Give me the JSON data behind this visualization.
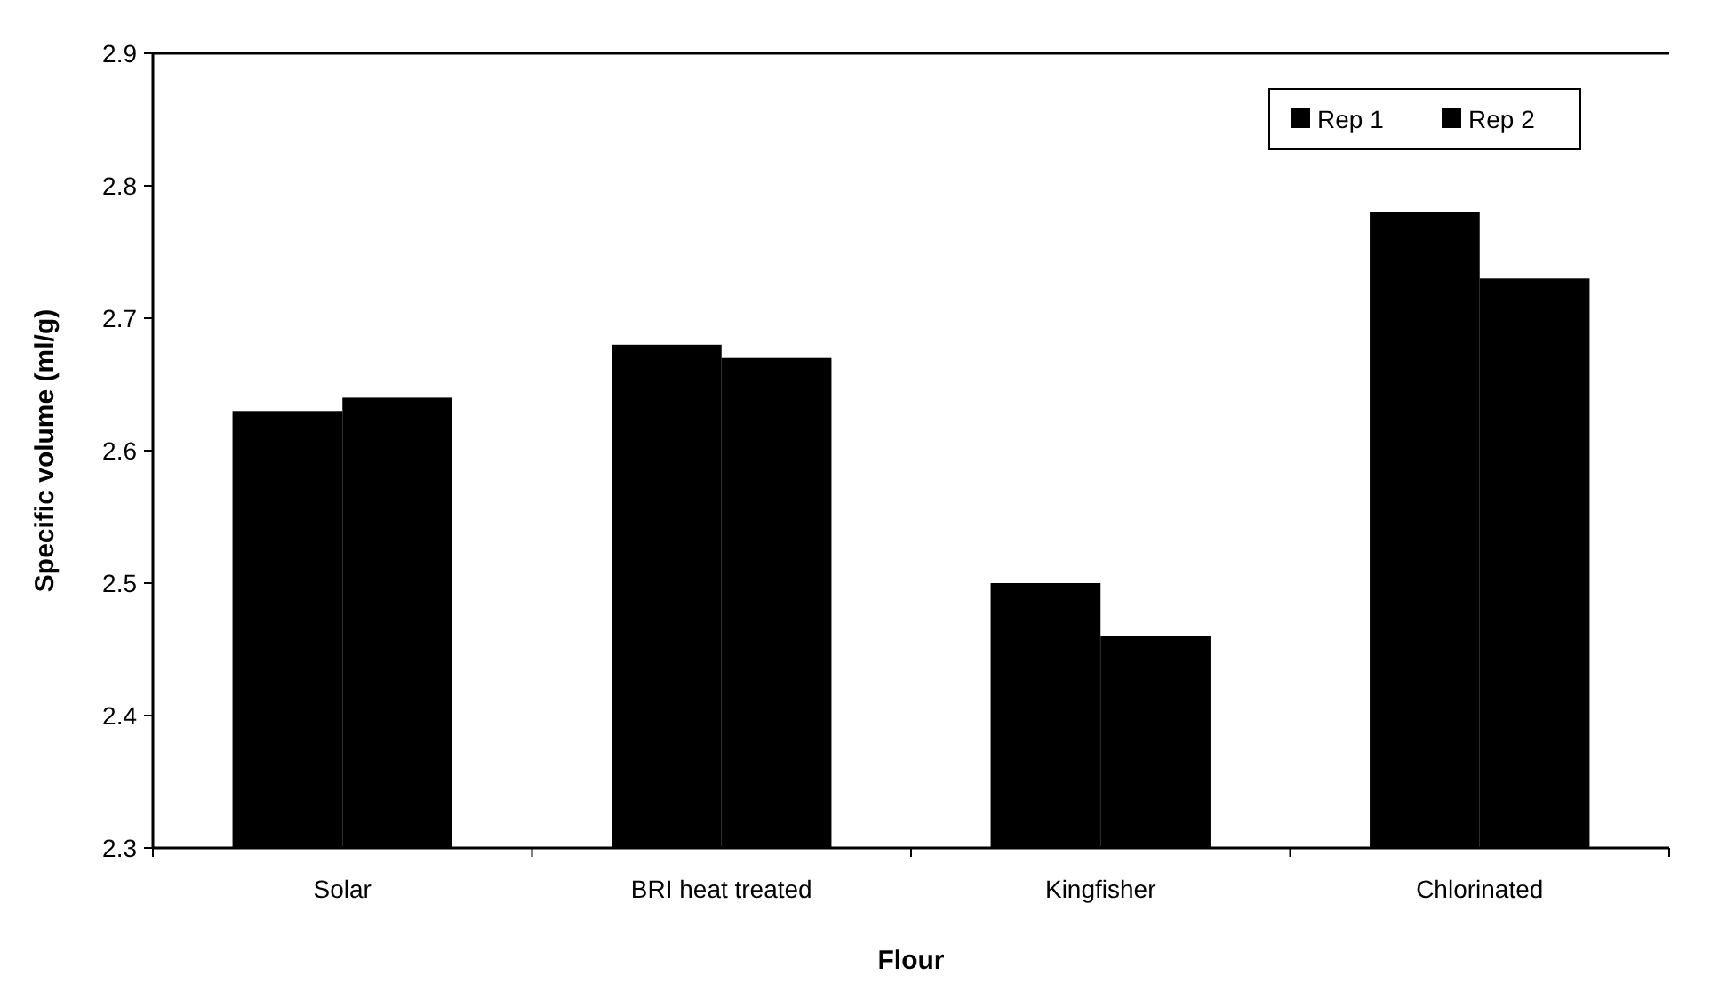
{
  "chart_data": {
    "type": "bar",
    "xlabel": "Flour",
    "ylabel": "Specific volume (ml/g)",
    "categories": [
      "Solar",
      "BRI heat treated",
      "Kingfisher",
      "Chlorinated"
    ],
    "series": [
      {
        "name": "Rep 1",
        "color": "#000000",
        "values": [
          2.63,
          2.68,
          2.5,
          2.78
        ]
      },
      {
        "name": "Rep 2",
        "color": "#000000",
        "values": [
          2.64,
          2.67,
          2.46,
          2.73
        ]
      }
    ],
    "ylim": [
      2.3,
      2.9
    ],
    "yticks": [
      2.3,
      2.4,
      2.5,
      2.6,
      2.7,
      2.8,
      2.9
    ],
    "legend": "top right",
    "grid": false
  }
}
